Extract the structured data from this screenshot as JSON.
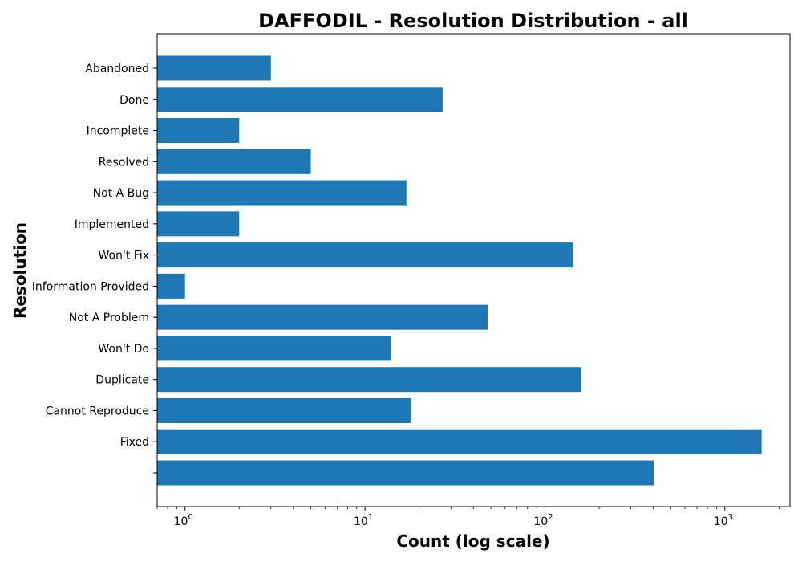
{
  "chart_data": {
    "type": "bar",
    "orientation": "horizontal",
    "title": "DAFFODIL - Resolution Distribution - all",
    "xlabel": "Count (log scale)",
    "ylabel": "Resolution",
    "x_scale": "log",
    "xlim": [
      0.7,
      2300
    ],
    "bar_color": "#1f77b4",
    "grid": false,
    "x_ticks": [
      {
        "value": 1,
        "base": "10",
        "exp": "0"
      },
      {
        "value": 10,
        "base": "10",
        "exp": "1"
      },
      {
        "value": 100,
        "base": "10",
        "exp": "2"
      },
      {
        "value": 1000,
        "base": "10",
        "exp": "3"
      }
    ],
    "categories": [
      "Abandoned",
      "Done",
      "Incomplete",
      "Resolved",
      "Not A Bug",
      "Implemented",
      "Won't Fix",
      "Information Provided",
      "Not A Problem",
      "Won't Do",
      "Duplicate",
      "Cannot Reproduce",
      "Fixed",
      ""
    ],
    "values": [
      3,
      27,
      2,
      5,
      17,
      2,
      143,
      1,
      48,
      14,
      159,
      18,
      1600,
      405
    ]
  }
}
